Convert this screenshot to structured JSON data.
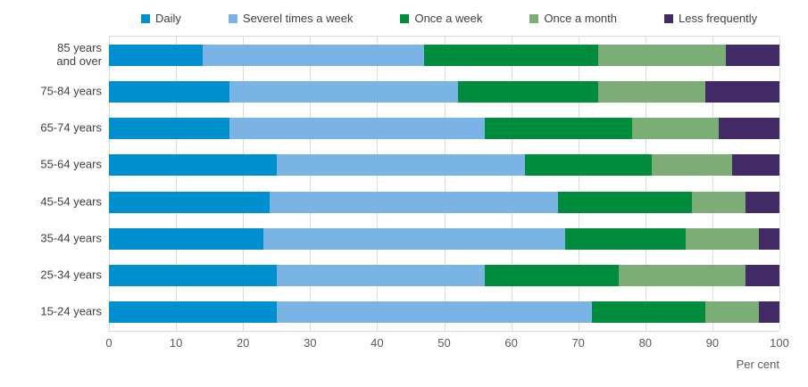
{
  "chart_data": {
    "type": "bar",
    "orientation": "horizontal",
    "stacked": true,
    "title": "",
    "xlabel": "Per cent",
    "ylabel": "",
    "xlim": [
      0,
      100
    ],
    "x_ticks": [
      0,
      10,
      20,
      30,
      40,
      50,
      60,
      70,
      80,
      90,
      100
    ],
    "grid": "vertical",
    "legend_position": "top",
    "categories": [
      "85 years\nand over",
      "75-84 years",
      "65-74 years",
      "55-64 years",
      "45-54 years",
      "35-44 years",
      "25-34 years",
      "15-24 years"
    ],
    "series": [
      {
        "name": "Daily",
        "color": "#0090d0",
        "values": [
          14,
          18,
          18,
          25,
          24,
          23,
          25,
          25
        ]
      },
      {
        "name": "Severel times a week",
        "color": "#7ab4e4",
        "values": [
          33,
          34,
          38,
          37,
          43,
          45,
          31,
          47
        ]
      },
      {
        "name": "Once a week",
        "color": "#008b3d",
        "values": [
          26,
          21,
          22,
          19,
          20,
          18,
          20,
          17
        ]
      },
      {
        "name": "Once a month",
        "color": "#7cad76",
        "values": [
          19,
          16,
          13,
          12,
          8,
          11,
          19,
          8
        ]
      },
      {
        "name": "Less frequently",
        "color": "#412a66",
        "values": [
          8,
          11,
          9,
          7,
          5,
          3,
          5,
          3
        ]
      }
    ],
    "colors": {
      "gridline": "#dcdcdc",
      "axis_text": "#595959",
      "label_text": "#404040"
    }
  }
}
